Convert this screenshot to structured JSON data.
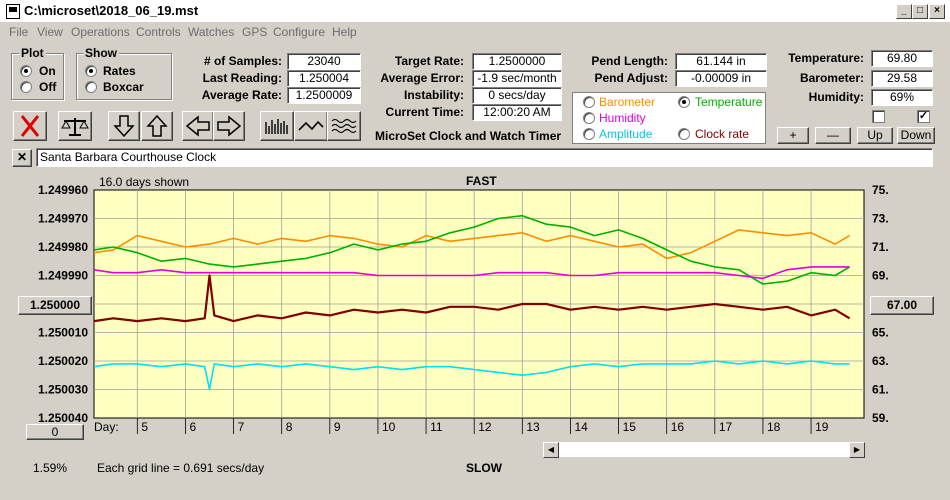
{
  "window": {
    "title": "C:\\microset\\2018_06_19.mst"
  },
  "menu": [
    "File",
    "View",
    "Operations",
    "Controls",
    "Watches",
    "GPS",
    "Configure",
    "Help"
  ],
  "plot_group": {
    "label": "Plot",
    "on": "On",
    "off": "Off",
    "selected": "On"
  },
  "show_group": {
    "label": "Show",
    "rates": "Rates",
    "boxcar": "Boxcar",
    "selected": "Rates"
  },
  "stats": {
    "samples_label": "# of Samples:",
    "samples": "23040",
    "last_reading_label": "Last Reading:",
    "last_reading": "1.250004",
    "avg_rate_label": "Average Rate:",
    "avg_rate": "1.2500009",
    "target_rate_label": "Target Rate:",
    "target_rate": "1.2500000",
    "avg_error_label": "Average Error:",
    "avg_error": "-1.9 sec/month",
    "instability_label": "Instability:",
    "instability": "0 secs/day",
    "current_time_label": "Current Time:",
    "current_time": "12:00:20 AM",
    "pend_length_label": "Pend Length:",
    "pend_length": "61.144 in",
    "pend_adjust_label": "Pend Adjust:",
    "pend_adjust": "-0.00009 in",
    "temperature_label": "Temperature:",
    "temperature": "69.80",
    "barometer_label": "Barometer:",
    "barometer": "29.58",
    "humidity_label": "Humidity:",
    "humidity": "69%"
  },
  "app_caption": "MicroSet Clock and Watch Timer",
  "sensor_select": {
    "barometer": "Barometer",
    "temperature": "Temperature",
    "humidity": "Humidity",
    "amplitude": "Amplitude",
    "clock_rate": "Clock rate",
    "selected": "Temperature"
  },
  "adjust_buttons": {
    "plus": "+",
    "minus": "—",
    "up": "Up",
    "down": "Down"
  },
  "clock_name": "Santa Barbara Courthouse Clock",
  "graph": {
    "days_shown": "16.0 days shown",
    "top_label": "FAST",
    "bottom_label": "SLOW",
    "grid_note": "Each grid line = 0.691 secs/day",
    "left_button": "1.250000",
    "right_button": "67.00",
    "bottom_left_button": "0",
    "percent": "1.59%",
    "day_label": "Day:"
  },
  "colors": {
    "plot_bg": "#ffffc0",
    "barometer": "#ff8c00",
    "temperature": "#00b000",
    "humidity": "#e000e0",
    "amplitude": "#00e0f0",
    "clock_rate": "#800000"
  },
  "chart_data": {
    "type": "line",
    "title": "",
    "top_label": "FAST",
    "bottom_label": "SLOW",
    "x_label": "Day:",
    "x_ticks": [
      5,
      6,
      7,
      8,
      9,
      10,
      11,
      12,
      13,
      14,
      15,
      16,
      17,
      18,
      19
    ],
    "xlim": [
      4.1,
      20.1
    ],
    "left_axis_ticks": [
      "1.249960",
      "1.249970",
      "1.249980",
      "1.249990",
      "1.250000",
      "1.250010",
      "1.250020",
      "1.250030",
      "1.250040"
    ],
    "left_ylim": [
      1.24996,
      1.25004
    ],
    "right_axis_ticks": [
      "75.00",
      "73.00",
      "71.00",
      "69.00",
      "67.00",
      "65.00",
      "63.00",
      "61.00",
      "59.00"
    ],
    "right_ylim": [
      59,
      75
    ],
    "grid": true,
    "series": [
      {
        "name": "Barometer",
        "color": "#ff8c00",
        "x": [
          4.1,
          4.5,
          5,
          5.5,
          6,
          6.5,
          7,
          7.5,
          8,
          8.5,
          9,
          9.5,
          10,
          10.5,
          11,
          11.5,
          12,
          12.5,
          13,
          13.5,
          14,
          14.5,
          15,
          15.5,
          16,
          16.5,
          17,
          17.5,
          18,
          18.5,
          19,
          19.5,
          19.8
        ],
        "y": [
          1.249982,
          1.249981,
          1.249976,
          1.249978,
          1.24998,
          1.249979,
          1.249977,
          1.249979,
          1.249977,
          1.249978,
          1.249976,
          1.249977,
          1.249979,
          1.24998,
          1.249976,
          1.249978,
          1.249977,
          1.249976,
          1.249975,
          1.249978,
          1.249976,
          1.249978,
          1.24998,
          1.249979,
          1.249984,
          1.249982,
          1.249978,
          1.249974,
          1.249975,
          1.249976,
          1.249975,
          1.249979,
          1.249976
        ]
      },
      {
        "name": "Temperature",
        "color": "#00b000",
        "x": [
          4.1,
          4.5,
          5,
          5.5,
          6,
          6.5,
          7,
          7.5,
          8,
          8.5,
          9,
          9.5,
          10,
          10.5,
          11,
          11.5,
          12,
          12.5,
          13,
          13.5,
          14,
          14.5,
          15,
          15.5,
          16,
          16.5,
          17,
          17.5,
          18,
          18.5,
          19,
          19.5,
          19.8
        ],
        "y": [
          1.249981,
          1.24998,
          1.249982,
          1.249985,
          1.249984,
          1.249986,
          1.249987,
          1.249986,
          1.249985,
          1.249984,
          1.249982,
          1.249979,
          1.249981,
          1.249979,
          1.249978,
          1.249975,
          1.249973,
          1.24997,
          1.249969,
          1.249972,
          1.249973,
          1.249976,
          1.249974,
          1.249977,
          1.249981,
          1.249985,
          1.249987,
          1.249988,
          1.249993,
          1.249992,
          1.249989,
          1.24999,
          1.249987
        ]
      },
      {
        "name": "Humidity",
        "color": "#e000e0",
        "x": [
          4.1,
          4.5,
          5,
          5.5,
          6,
          6.5,
          7,
          7.5,
          8,
          8.5,
          9,
          9.5,
          10,
          10.5,
          11,
          11.5,
          12,
          12.5,
          13,
          13.5,
          14,
          14.5,
          15,
          15.5,
          16,
          16.5,
          17,
          17.5,
          18,
          18.5,
          19,
          19.5,
          19.8
        ],
        "y": [
          1.249988,
          1.249989,
          1.249989,
          1.249988,
          1.249989,
          1.249989,
          1.249989,
          1.249989,
          1.249989,
          1.249989,
          1.249989,
          1.249989,
          1.24999,
          1.24999,
          1.24999,
          1.24999,
          1.24999,
          1.249989,
          1.249989,
          1.249989,
          1.24999,
          1.24999,
          1.249989,
          1.249989,
          1.249989,
          1.249989,
          1.249989,
          1.24999,
          1.249991,
          1.249988,
          1.249987,
          1.249987,
          1.249987
        ]
      },
      {
        "name": "Clock rate",
        "color": "#800000",
        "x": [
          4.1,
          4.5,
          5,
          5.5,
          6,
          6.4,
          6.5,
          6.6,
          7,
          7.5,
          8,
          8.5,
          9,
          9.5,
          10,
          10.5,
          11,
          11.5,
          12,
          12.5,
          13,
          13.5,
          14,
          14.5,
          15,
          15.5,
          16,
          16.5,
          17,
          17.5,
          18,
          18.5,
          19,
          19.5,
          19.8
        ],
        "y": [
          1.250006,
          1.250005,
          1.250006,
          1.250005,
          1.250006,
          1.250005,
          1.24999,
          1.250004,
          1.250006,
          1.250004,
          1.250005,
          1.250003,
          1.250004,
          1.250002,
          1.250003,
          1.250002,
          1.250003,
          1.250001,
          1.250001,
          1.250002,
          1.25,
          1.25,
          1.250002,
          1.250001,
          1.250002,
          1.250001,
          1.250002,
          1.250001,
          1.25,
          1.250001,
          1.250002,
          1.250001,
          1.250004,
          1.250002,
          1.250005
        ]
      },
      {
        "name": "Amplitude",
        "color": "#00e0f0",
        "x": [
          4.1,
          4.5,
          5,
          5.5,
          6,
          6.4,
          6.5,
          6.6,
          7,
          7.5,
          8,
          8.5,
          9,
          9.5,
          10,
          10.5,
          11,
          11.5,
          12,
          12.5,
          13,
          13.5,
          14,
          14.5,
          15,
          15.5,
          16,
          16.5,
          17,
          17.5,
          18,
          18.5,
          19,
          19.5,
          19.8
        ],
        "y": [
          1.250022,
          1.250021,
          1.250021,
          1.250022,
          1.250021,
          1.250022,
          1.25003,
          1.250021,
          1.250022,
          1.250021,
          1.250022,
          1.250021,
          1.250022,
          1.250023,
          1.250022,
          1.250023,
          1.250022,
          1.250022,
          1.250023,
          1.250024,
          1.250025,
          1.250024,
          1.250022,
          1.250021,
          1.250022,
          1.250021,
          1.250021,
          1.250021,
          1.25002,
          1.250021,
          1.25002,
          1.250021,
          1.25002,
          1.250021,
          1.250021
        ]
      }
    ]
  }
}
